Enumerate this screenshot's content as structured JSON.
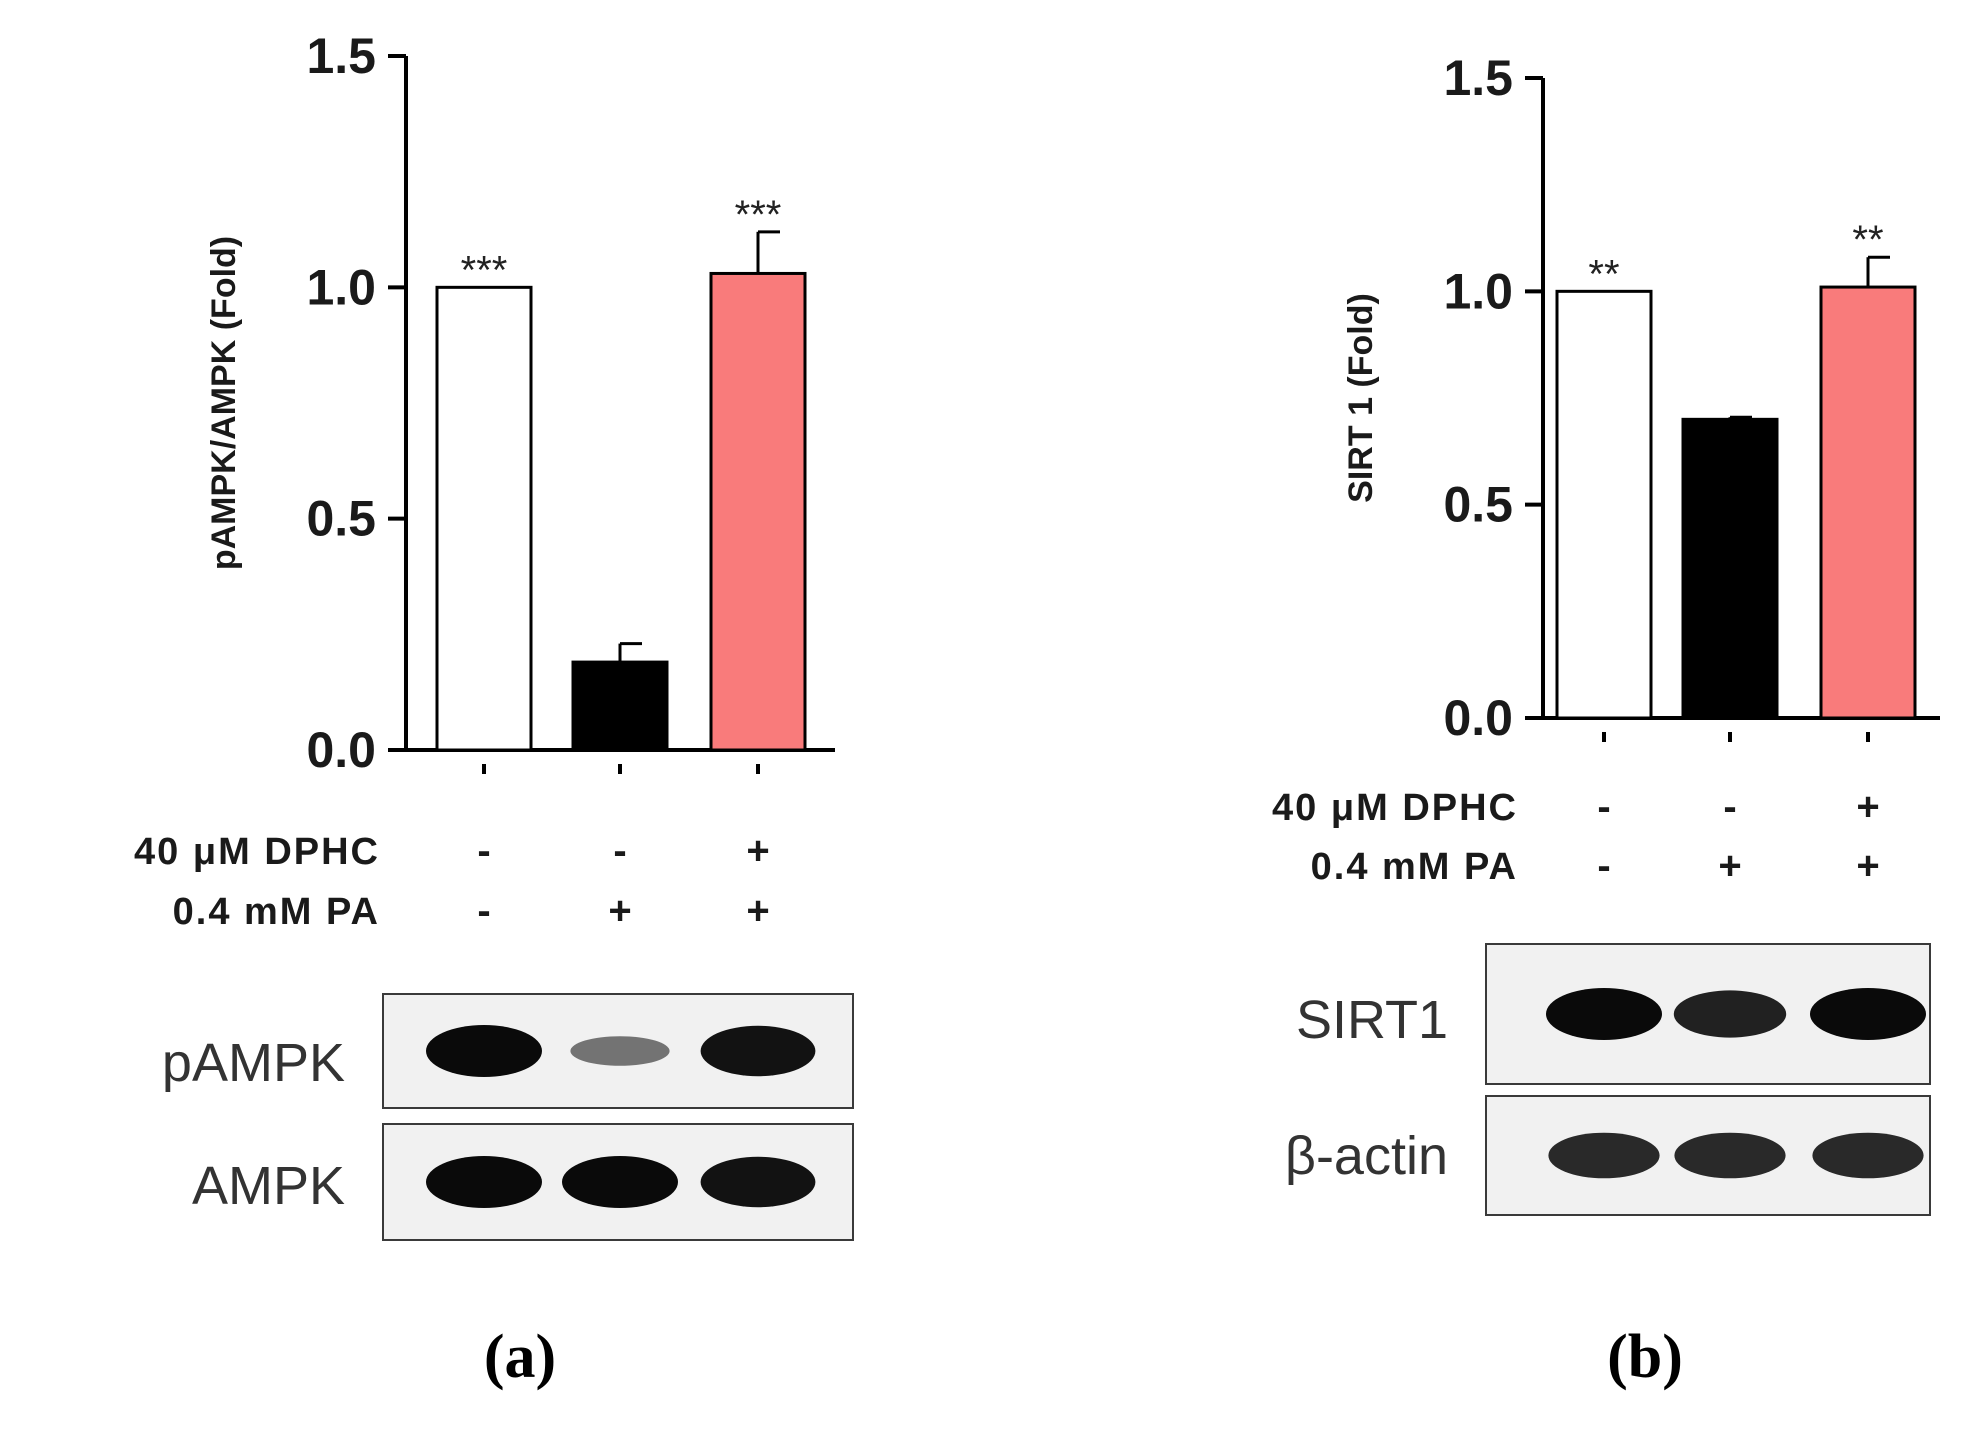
{
  "chart_data": [
    {
      "panel_label": "(a)",
      "type": "bar",
      "ylabel": "pAMPK/AMPK (Fold)",
      "ylim": [
        0,
        1.5
      ],
      "yticks": [
        "0.0",
        "0.5",
        "1.0",
        "1.5"
      ],
      "series": [
        {
          "values": [
            1.0,
            0.19,
            1.03
          ],
          "errors": [
            0,
            0.04,
            0.09
          ],
          "colors": [
            "#ffffff",
            "#000000",
            "#f97b7b"
          ],
          "significance": [
            "***",
            "",
            "***"
          ]
        }
      ],
      "treatments": [
        {
          "label": "40 μM DPHC",
          "values": [
            "-",
            "-",
            "+"
          ]
        },
        {
          "label": "0.4 mM PA",
          "values": [
            "-",
            "+",
            "+"
          ]
        }
      ],
      "blots": [
        {
          "label": "pAMPK",
          "band_intensity": [
            1.0,
            0.3,
            0.95
          ]
        },
        {
          "label": "AMPK",
          "band_intensity": [
            1.0,
            1.0,
            0.95
          ]
        }
      ]
    },
    {
      "panel_label": "(b)",
      "type": "bar",
      "ylabel": "SIRT 1 (Fold)",
      "ylim": [
        0,
        1.5
      ],
      "yticks": [
        "0.0",
        "0.5",
        "1.0",
        "1.5"
      ],
      "series": [
        {
          "values": [
            1.0,
            0.7,
            1.01
          ],
          "errors": [
            0,
            0.005,
            0.07
          ],
          "colors": [
            "#ffffff",
            "#000000",
            "#f97b7b"
          ],
          "significance": [
            "**",
            "",
            "**"
          ]
        }
      ],
      "treatments": [
        {
          "label": "40 μM DPHC",
          "values": [
            "-",
            "-",
            "+"
          ]
        },
        {
          "label": "0.4 mM PA",
          "values": [
            "-",
            "+",
            "+"
          ]
        }
      ],
      "blots": [
        {
          "label": "SIRT1",
          "band_intensity": [
            1.0,
            0.85,
            1.0
          ]
        },
        {
          "label": "β-actin",
          "band_intensity": [
            0.8,
            0.8,
            0.8
          ]
        }
      ]
    }
  ]
}
